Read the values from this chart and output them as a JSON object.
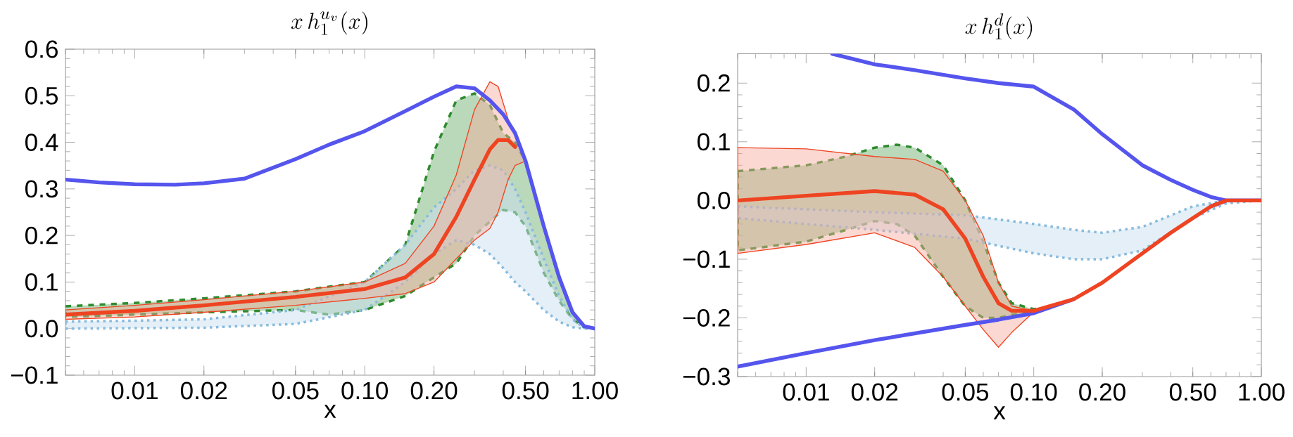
{
  "chart_data": [
    {
      "type": "line",
      "title": "x\\, h_1^{u_v}(x)",
      "xlabel": "x",
      "log": "x",
      "xlim": [
        0.005,
        1
      ],
      "ylim": [
        -0.1,
        0.6
      ],
      "xticks": [
        0.01,
        0.02,
        0.05,
        {
          "value": 0.1,
          "label": "0.10"
        },
        {
          "value": 0.2,
          "label": "0.20"
        },
        {
          "value": 0.5,
          "label": "0.50"
        },
        {
          "value": 1,
          "label": "1.00"
        }
      ],
      "yticks": [
        {
          "value": -0.1,
          "label": "−0.1"
        },
        {
          "value": 0,
          "label": "0.0"
        },
        0.1,
        0.2,
        0.3,
        0.4,
        0.5,
        0.6
      ],
      "series": [
        {
          "color": "#2e8b2e",
          "line_style": "dashed",
          "x": [
            0.005,
            0.01,
            0.02,
            0.05,
            0.07,
            0.1,
            0.15,
            0.2,
            0.25,
            0.3,
            0.35,
            0.4,
            0.45,
            0.5,
            0.6,
            0.7,
            0.8,
            0.9,
            1.0
          ],
          "values": [
            null,
            null,
            null,
            null,
            null,
            null,
            null,
            null,
            null,
            null,
            null,
            null,
            null,
            null,
            null,
            null,
            null,
            null,
            null
          ],
          "upper": [
            0.048,
            0.055,
            0.065,
            0.08,
            0.09,
            0.1,
            0.18,
            0.38,
            0.49,
            0.505,
            0.48,
            0.42,
            0.4,
            0.36,
            0.22,
            0.11,
            0.035,
            0.005,
            0.0
          ],
          "lower": [
            0.025,
            0.03,
            0.035,
            0.04,
            0.03,
            0.04,
            0.07,
            0.11,
            0.14,
            0.2,
            0.23,
            0.255,
            0.25,
            0.22,
            0.12,
            0.06,
            0.02,
            0.002,
            0.0
          ]
        },
        {
          "color": "#88bbdd",
          "line_style": "dotted",
          "x": [
            0.005,
            0.01,
            0.02,
            0.05,
            0.1,
            0.15,
            0.2,
            0.25,
            0.3,
            0.35,
            0.4,
            0.45,
            0.5,
            0.6,
            0.7,
            0.8,
            0.9,
            1.0
          ],
          "values": [
            null,
            null,
            null,
            null,
            null,
            null,
            null,
            null,
            null,
            null,
            null,
            null,
            null,
            null,
            null,
            null,
            null,
            null
          ],
          "upper": [
            0.015,
            0.017,
            0.02,
            0.04,
            0.1,
            0.18,
            0.26,
            0.3,
            0.34,
            0.35,
            0.34,
            0.3,
            0.25,
            0.15,
            0.07,
            0.02,
            0.002,
            0.0
          ],
          "lower": [
            0.0,
            0.001,
            0.002,
            0.01,
            0.04,
            0.1,
            0.16,
            0.19,
            0.18,
            0.16,
            0.13,
            0.1,
            0.08,
            0.04,
            0.015,
            0.003,
            0.0,
            0.0
          ]
        },
        {
          "color": "#ee4422",
          "line_style": "solid",
          "x": [
            0.005,
            0.01,
            0.02,
            0.05,
            0.1,
            0.15,
            0.2,
            0.25,
            0.3,
            0.35,
            0.38,
            0.42,
            0.45,
            0.5,
            0.6,
            0.7,
            0.8,
            0.9,
            1.0
          ],
          "values": [
            0.03,
            0.038,
            0.05,
            0.068,
            0.085,
            0.11,
            0.16,
            0.24,
            0.32,
            0.385,
            0.405,
            0.405,
            0.39,
            null,
            null,
            null,
            null,
            null,
            null
          ],
          "upper": [
            0.04,
            0.05,
            0.062,
            0.08,
            0.1,
            0.14,
            0.22,
            0.33,
            0.47,
            0.53,
            0.52,
            0.45,
            0.42,
            0.36,
            0.22,
            0.11,
            0.035,
            0.005,
            0.0
          ],
          "lower": [
            0.02,
            0.025,
            0.035,
            0.05,
            0.065,
            0.075,
            0.1,
            0.15,
            0.19,
            0.215,
            0.25,
            0.32,
            0.35,
            0.36,
            0.22,
            0.11,
            0.035,
            0.005,
            0.0
          ]
        },
        {
          "color": "#5555ee",
          "line_style": "solid",
          "x": [
            0.005,
            0.007,
            0.01,
            0.015,
            0.02,
            0.03,
            0.05,
            0.07,
            0.1,
            0.15,
            0.2,
            0.25,
            0.3,
            0.35,
            0.4,
            0.45,
            0.5,
            0.6,
            0.7,
            0.8,
            0.9,
            1.0
          ],
          "values": [
            0.32,
            0.314,
            0.31,
            0.309,
            0.312,
            0.322,
            0.364,
            0.395,
            0.424,
            0.467,
            0.498,
            0.52,
            0.516,
            0.49,
            0.46,
            0.42,
            0.36,
            0.22,
            0.11,
            0.035,
            0.005,
            0.0
          ]
        }
      ]
    },
    {
      "type": "line",
      "title": "x\\, h_1^{d}(x)",
      "xlabel": "x",
      "log": "x",
      "xlim": [
        0.005,
        1
      ],
      "ylim": [
        -0.3,
        0.25
      ],
      "xticks": [
        0.01,
        0.02,
        0.05,
        {
          "value": 0.1,
          "label": "0.10"
        },
        {
          "value": 0.2,
          "label": "0.20"
        },
        {
          "value": 0.5,
          "label": "0.50"
        },
        {
          "value": 1,
          "label": "1.00"
        }
      ],
      "yticks": [
        {
          "value": -0.3,
          "label": "−0.3"
        },
        {
          "value": -0.2,
          "label": "−0.2"
        },
        {
          "value": -0.1,
          "label": "−0.1"
        },
        {
          "value": 0,
          "label": "0.0"
        },
        0.1,
        0.2
      ],
      "series": [
        {
          "color": "#2e8b2e",
          "line_style": "dashed",
          "x": [
            0.005,
            0.01,
            0.015,
            0.02,
            0.025,
            0.03,
            0.04,
            0.05,
            0.06,
            0.07,
            0.08,
            0.1,
            0.12
          ],
          "values": [
            null,
            null,
            null,
            null,
            null,
            null,
            null,
            null,
            null,
            null,
            null,
            null,
            null
          ],
          "upper": [
            0.05,
            0.06,
            0.075,
            0.09,
            0.095,
            0.09,
            0.06,
            0.0,
            -0.07,
            -0.14,
            -0.175,
            -0.185,
            -0.182
          ],
          "lower": [
            -0.085,
            -0.07,
            -0.05,
            -0.035,
            -0.04,
            -0.06,
            -0.13,
            -0.18,
            -0.2,
            -0.2,
            -0.195,
            -0.19,
            -0.182
          ]
        },
        {
          "color": "#88bbdd",
          "line_style": "dotted",
          "x": [
            0.005,
            0.01,
            0.02,
            0.05,
            0.1,
            0.15,
            0.2,
            0.3,
            0.5,
            0.7,
            1.0
          ],
          "values": [
            null,
            null,
            null,
            null,
            null,
            null,
            null,
            null,
            null,
            null,
            null
          ],
          "upper": [
            -0.01,
            -0.015,
            -0.02,
            -0.025,
            -0.04,
            -0.05,
            -0.055,
            -0.045,
            -0.01,
            0.0,
            0.0
          ],
          "lower": [
            -0.03,
            -0.04,
            -0.05,
            -0.065,
            -0.09,
            -0.1,
            -0.1,
            -0.085,
            -0.03,
            -0.005,
            0.0
          ]
        },
        {
          "color": "#ee4422",
          "line_style": "solid",
          "x": [
            0.005,
            0.01,
            0.02,
            0.03,
            0.04,
            0.05,
            0.06,
            0.07,
            0.08,
            0.1,
            0.15,
            0.2,
            0.3,
            0.4,
            0.5,
            0.6,
            0.7,
            0.8,
            1.0
          ],
          "values": [
            0.0,
            0.008,
            0.016,
            0.01,
            -0.015,
            -0.065,
            -0.13,
            -0.175,
            -0.188,
            -0.188,
            -0.168,
            -0.14,
            -0.09,
            -0.055,
            -0.03,
            -0.01,
            0.0,
            0.0,
            0.0
          ],
          "upper": [
            0.09,
            0.088,
            0.075,
            0.07,
            0.05,
            0.0,
            -0.06,
            -0.14,
            -0.18,
            -0.188,
            -0.168,
            -0.14,
            -0.09,
            -0.055,
            -0.03,
            -0.01,
            0.0,
            0.0,
            0.0
          ],
          "lower": [
            -0.09,
            -0.075,
            -0.055,
            -0.08,
            -0.13,
            -0.18,
            -0.22,
            -0.25,
            -0.225,
            -0.19,
            -0.168,
            -0.14,
            -0.09,
            -0.055,
            -0.03,
            -0.01,
            0.0,
            0.0,
            0.0
          ]
        },
        {
          "color": "#5555ee",
          "line_style": "solid",
          "x": [
            0.013,
            0.02,
            0.03,
            0.05,
            0.07,
            0.1,
            0.15,
            0.2,
            0.3,
            0.4,
            0.5,
            0.6,
            0.7,
            0.8,
            1.0
          ],
          "values": [
            0.25,
            0.232,
            0.222,
            0.208,
            0.2,
            0.194,
            0.155,
            0.113,
            0.06,
            0.035,
            0.018,
            0.006,
            0.0,
            0.0,
            0.0
          ]
        },
        {
          "color": "#5555ee",
          "line_style": "solid",
          "x": [
            0.005,
            0.01,
            0.02,
            0.05,
            0.07,
            0.1,
            0.15,
            0.2,
            0.3,
            0.4,
            0.5,
            0.6,
            0.7,
            0.8,
            1.0
          ],
          "values": [
            -0.283,
            -0.26,
            -0.238,
            -0.212,
            -0.203,
            -0.192,
            -0.168,
            null,
            null,
            null,
            null,
            -0.01,
            0.0,
            0.0,
            0.0
          ]
        }
      ]
    }
  ]
}
